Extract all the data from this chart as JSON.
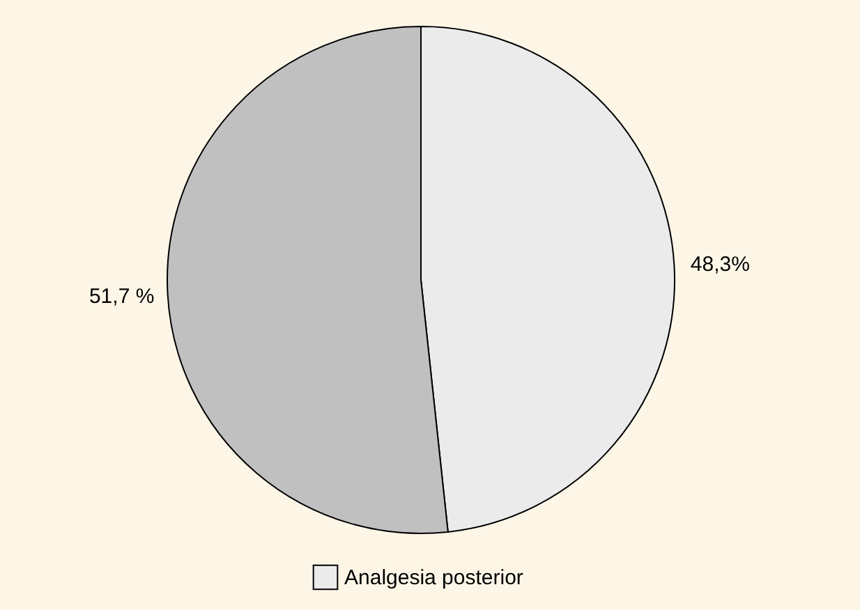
{
  "chart_data": {
    "type": "pie",
    "categories": [
      "Analgesia posterior",
      null
    ],
    "values": [
      48.3,
      51.7
    ],
    "colors": [
      "#ebebeb",
      "#c0c0c0"
    ],
    "value_labels": [
      "48,3%",
      "51,7 %"
    ],
    "legend": "bottom"
  }
}
